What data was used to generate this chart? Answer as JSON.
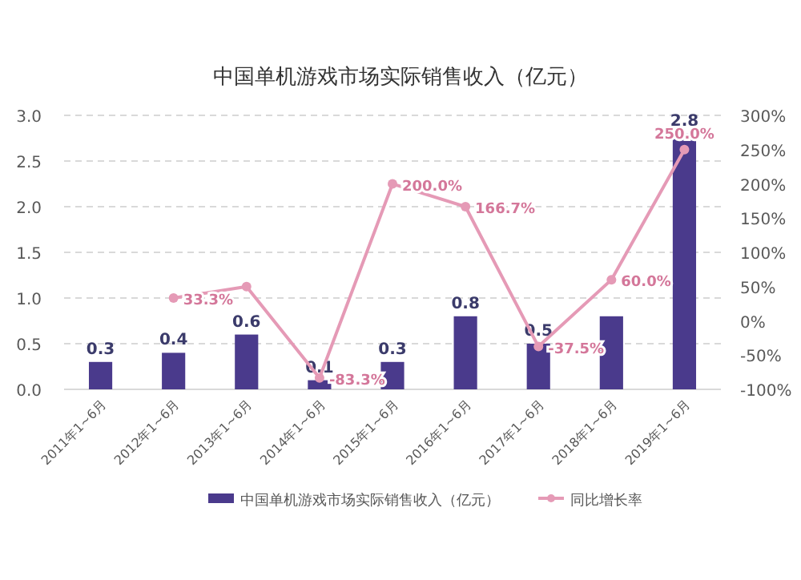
{
  "chart_data": {
    "type": "bar",
    "title": "中国单机游戏市场实际销售收入（亿元）",
    "categories": [
      "2011年1~6月",
      "2012年1~6月",
      "2013年1~6月",
      "2014年1~6月",
      "2015年1~6月",
      "2016年1~6月",
      "2017年1~6月",
      "2018年1~6月",
      "2019年1~6月"
    ],
    "series": [
      {
        "name": "中国单机游戏市场实际销售收入（亿元）",
        "color": "#4a3a8c",
        "values": [
          0.3,
          0.4,
          0.6,
          0.1,
          0.3,
          0.8,
          0.5,
          0.8,
          2.8
        ],
        "value_labels": [
          "0.3",
          "0.4",
          "0.6",
          "0.1",
          "0.3",
          "0.8",
          "0.5",
          null,
          "2.8"
        ]
      },
      {
        "name": "同比增长率",
        "type": "line",
        "axis": "y2",
        "color": "#e59ab6",
        "marker": "circle",
        "values": [
          null,
          33.3,
          50,
          -83.3,
          200.0,
          166.7,
          -37.5,
          60.0,
          250.0
        ],
        "value_labels": [
          null,
          "33.3%",
          null,
          "-83.3%",
          "200.0%",
          "166.7%",
          "-37.5%",
          "60.0%",
          "250.0%"
        ]
      }
    ],
    "ylim": [
      0,
      3
    ],
    "yticks": [
      {
        "value": 0,
        "label": "0.0"
      },
      {
        "value": 0.5,
        "label": "0.5"
      },
      {
        "value": 1,
        "label": "1.0"
      },
      {
        "value": 1.5,
        "label": "1.5"
      },
      {
        "value": 2,
        "label": "2.0"
      },
      {
        "value": 2.5,
        "label": "2.5"
      },
      {
        "value": 3,
        "label": "3.0"
      }
    ],
    "y2lim": [
      -100,
      300
    ],
    "y2ticks": [
      {
        "value": -100,
        "label": "-100%"
      },
      {
        "value": -50,
        "label": "-50%"
      },
      {
        "value": 0,
        "label": "0%"
      },
      {
        "value": 50,
        "label": "50%"
      },
      {
        "value": 100,
        "label": "100%"
      },
      {
        "value": 150,
        "label": "150%"
      },
      {
        "value": 200,
        "label": "200%"
      },
      {
        "value": 250,
        "label": "250%"
      },
      {
        "value": 300,
        "label": "300%"
      }
    ],
    "grid": "y",
    "legend": "bottom"
  }
}
